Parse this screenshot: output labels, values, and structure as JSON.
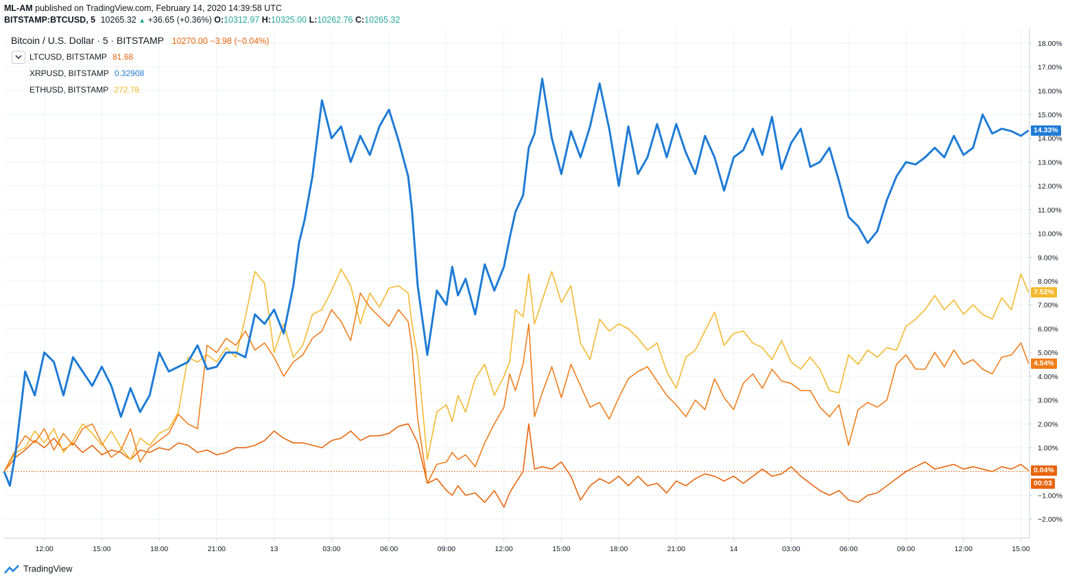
{
  "header": {
    "publisher": "ML-AM",
    "published_text": "published on TradingView.com, February 14, 2020 14:39:58 UTC",
    "symbol": "BITSTAMP:BTCUSD, 5",
    "price": "10265.32",
    "change": "+36.65 (+0.36%)",
    "open_label": "O:",
    "open": "10312.97",
    "high_label": "H:",
    "high": "10325.00",
    "low_label": "L:",
    "low": "10262.76",
    "close_label": "C:",
    "close": "10265.32"
  },
  "legend": {
    "main_title": "Bitcoin / U.S. Dollar · 5 · BITSTAMP",
    "main_values": "10270.00 −3.98 (−0.04%)",
    "overlays": [
      {
        "name": "LTCUSD, BITSTAMP",
        "value": "81.68",
        "color": "#e8640c"
      },
      {
        "name": "XRPUSD, BITSTAMP",
        "value": "0.32908",
        "color": "#1e7bd6"
      },
      {
        "name": "ETHUSD, BITSTAMP",
        "value": "272.78",
        "color": "#f5b82e"
      }
    ]
  },
  "price_tags": [
    {
      "text": "14.33%",
      "color": "#1e7bd6",
      "value": 14.33
    },
    {
      "text": "7.52%",
      "color": "#f5b82e",
      "value": 7.52
    },
    {
      "text": "4.54%",
      "color": "#f07d1a",
      "value": 4.54
    },
    {
      "text": "0.04%",
      "color": "#e8640c",
      "value": 0.04
    },
    {
      "text": "00:03",
      "color": "#e8640c",
      "value": -0.5
    }
  ],
  "brand": "TradingView",
  "colors": {
    "xrp": "#1e7bd6",
    "eth": "#f5b82e",
    "ltc": "#f07d1a",
    "btc": "#e8640c",
    "grid": "#eef0f3"
  },
  "chart_data": {
    "type": "line",
    "ylim": [
      -2.8,
      18.6
    ],
    "y_unit": "%",
    "y_ticks": [
      "18.00%",
      "17.00%",
      "16.00%",
      "15.00%",
      "14.00%",
      "13.00%",
      "12.00%",
      "11.00%",
      "10.00%",
      "9.00%",
      "8.00%",
      "7.00%",
      "6.00%",
      "5.00%",
      "4.00%",
      "3.00%",
      "2.00%",
      "1.00%",
      "−1.00%",
      "−2.00%"
    ],
    "y_tick_values": [
      18,
      17,
      16,
      15,
      14,
      13,
      12,
      11,
      10,
      9,
      8,
      7,
      6,
      5,
      4,
      3,
      2,
      1,
      -1,
      -2
    ],
    "x_ticks": [
      "12:00",
      "15:00",
      "18:00",
      "21:00",
      "13",
      "03:00",
      "06:00",
      "09:00",
      "12:00",
      "15:00",
      "18:00",
      "21:00",
      "14",
      "03:00",
      "06:00",
      "09:00",
      "12:00",
      "15:00"
    ],
    "x_tick_hours": [
      3,
      6,
      9,
      12,
      15,
      18,
      21,
      24,
      27,
      30,
      33,
      36,
      39,
      42,
      45,
      48,
      51,
      54
    ],
    "x_range_hours": [
      0.9,
      54.45
    ],
    "series": [
      {
        "name": "XRPUSD",
        "color": "#1e7bd6",
        "x": [
          0.9,
          1.2,
          1.5,
          2,
          2.5,
          3,
          3.5,
          4,
          4.5,
          5,
          5.5,
          6,
          6.5,
          7,
          7.5,
          8,
          8.5,
          9,
          9.5,
          10,
          10.5,
          11,
          11.5,
          12,
          12.5,
          13,
          13.5,
          14,
          14.5,
          15,
          15.5,
          16,
          16.3,
          16.6,
          17,
          17.5,
          18,
          18.5,
          19,
          19.5,
          20,
          20.5,
          21,
          21.5,
          22,
          22.2,
          22.5,
          23,
          23.5,
          24,
          24.3,
          24.6,
          25,
          25.5,
          26,
          26.5,
          27,
          27.3,
          27.6,
          28,
          28.3,
          28.6,
          29,
          29.5,
          30,
          30.5,
          31,
          31.5,
          32,
          32.5,
          33,
          33.5,
          34,
          34.5,
          35,
          35.5,
          36,
          36.5,
          37,
          37.5,
          38,
          38.5,
          39,
          39.5,
          40,
          40.5,
          41,
          41.5,
          42,
          42.5,
          43,
          43.5,
          44,
          44.5,
          45,
          45.5,
          46,
          46.5,
          47,
          47.5,
          48,
          48.5,
          49,
          49.5,
          50,
          50.5,
          51,
          51.5,
          52,
          52.5,
          53,
          53.5,
          54,
          54.4
        ],
        "y": [
          0,
          -0.6,
          0.8,
          4.2,
          3.2,
          5,
          4.6,
          3.2,
          4.8,
          4.2,
          3.6,
          4.4,
          3.6,
          2.3,
          3.5,
          2.5,
          3.2,
          5,
          4.2,
          4.4,
          4.6,
          5.3,
          4.3,
          4.4,
          5,
          5,
          4.8,
          6.6,
          6.2,
          6.8,
          5.8,
          7.8,
          9.6,
          10.6,
          12.4,
          15.6,
          14,
          14.5,
          13,
          14.1,
          13.3,
          14.5,
          15.2,
          13.9,
          12.4,
          11,
          7.8,
          4.9,
          7.6,
          7,
          8.6,
          7.4,
          8.1,
          6.6,
          8.7,
          7.6,
          8.6,
          9.8,
          10.9,
          11.6,
          13.6,
          14.2,
          16.5,
          14,
          12.5,
          14.3,
          13.2,
          14.5,
          16.3,
          14.4,
          12,
          14.5,
          12.5,
          13.2,
          14.6,
          13.2,
          14.6,
          13.4,
          12.5,
          14.1,
          13.2,
          11.8,
          13.2,
          13.5,
          14.4,
          13.3,
          14.9,
          12.7,
          13.8,
          14.4,
          12.8,
          13,
          13.6,
          12.2,
          10.7,
          10.3,
          9.6,
          10.1,
          11.4,
          12.4,
          13,
          12.9,
          13.2,
          13.6,
          13.2,
          14.1,
          13.3,
          13.6,
          15,
          14.2,
          14.4,
          14.3,
          14.1,
          14.33
        ]
      },
      {
        "name": "ETHUSD",
        "color": "#f5b82e",
        "x": [
          0.9,
          1.5,
          2,
          2.5,
          3,
          3.5,
          4,
          4.5,
          5,
          5.5,
          6,
          6.5,
          7,
          7.5,
          8,
          8.5,
          9,
          9.5,
          10,
          10.5,
          11,
          11.5,
          12,
          12.5,
          13,
          13.5,
          14,
          14.5,
          15,
          15.5,
          16,
          16.5,
          17,
          17.5,
          18,
          18.5,
          19,
          19.5,
          20,
          20.5,
          21,
          21.5,
          22,
          22.2,
          22.5,
          23,
          23.5,
          24,
          24.3,
          24.6,
          25,
          25.5,
          26,
          26.5,
          27,
          27.3,
          27.6,
          28,
          28.3,
          28.6,
          29,
          29.5,
          30,
          30.5,
          31,
          31.5,
          32,
          32.5,
          33,
          33.5,
          34,
          34.5,
          35,
          35.5,
          36,
          36.5,
          37,
          37.5,
          38,
          38.5,
          39,
          39.5,
          40,
          40.5,
          41,
          41.5,
          42,
          42.5,
          43,
          43.5,
          44,
          44.5,
          45,
          45.5,
          46,
          46.5,
          47,
          47.5,
          48,
          48.5,
          49,
          49.5,
          50,
          50.5,
          51,
          51.5,
          52,
          52.5,
          53,
          53.5,
          54,
          54.4
        ],
        "y": [
          0,
          0.8,
          1,
          1.7,
          1.2,
          1.8,
          0.8,
          1.3,
          2,
          1.6,
          1.1,
          1.7,
          1,
          0.5,
          1.4,
          1.1,
          1.6,
          1.8,
          2.5,
          4.8,
          4.6,
          4.9,
          4.6,
          5.2,
          4.8,
          6.5,
          8.4,
          7.9,
          5,
          6.2,
          4.8,
          5.3,
          6.6,
          6.8,
          7.6,
          8.5,
          7.8,
          6.2,
          7.5,
          6.9,
          7.7,
          7.8,
          7.5,
          6.2,
          4.8,
          0.5,
          2.5,
          2.8,
          2.1,
          3.2,
          2.5,
          3.9,
          4.5,
          3.2,
          4,
          4.6,
          6.8,
          6.5,
          8.3,
          6.2,
          7.2,
          8.4,
          7.1,
          7.8,
          5.4,
          4.7,
          6.4,
          5.9,
          6.2,
          6,
          5.6,
          5.1,
          5.4,
          4.2,
          3.5,
          4.8,
          5.1,
          5.9,
          6.7,
          5.3,
          5.8,
          5.9,
          5.4,
          5.2,
          4.7,
          5.5,
          4.6,
          4.3,
          4.8,
          4.3,
          3.4,
          3.3,
          4.9,
          4.5,
          5.1,
          4.8,
          5.2,
          5.1,
          6.1,
          6.4,
          6.8,
          7.4,
          6.8,
          7.2,
          6.6,
          7,
          6.6,
          6.4,
          7.3,
          6.8,
          8.3,
          7.52
        ]
      },
      {
        "name": "LTCUSD",
        "color": "#f07d1a",
        "x": [
          0.9,
          1.5,
          2,
          2.5,
          3,
          3.5,
          4,
          4.5,
          5,
          5.5,
          6,
          6.5,
          7,
          7.5,
          8,
          8.5,
          9,
          9.5,
          10,
          10.5,
          11,
          11.5,
          12,
          12.5,
          13,
          13.5,
          14,
          14.5,
          15,
          15.5,
          16,
          16.5,
          17,
          17.5,
          18,
          18.5,
          19,
          19.5,
          20,
          20.5,
          21,
          21.5,
          22,
          22.2,
          22.5,
          23,
          23.5,
          24,
          24.3,
          24.6,
          25,
          25.5,
          26,
          26.5,
          27,
          27.3,
          27.6,
          28,
          28.3,
          28.6,
          29,
          29.5,
          30,
          30.5,
          31,
          31.5,
          32,
          32.5,
          33,
          33.5,
          34,
          34.5,
          35,
          35.5,
          36,
          36.5,
          37,
          37.5,
          38,
          38.5,
          39,
          39.5,
          40,
          40.5,
          41,
          41.5,
          42,
          42.5,
          43,
          43.5,
          44,
          44.5,
          45,
          45.5,
          46,
          46.5,
          47,
          47.5,
          48,
          48.5,
          49,
          49.5,
          50,
          50.5,
          51,
          51.5,
          52,
          52.5,
          53,
          53.5,
          54,
          54.4
        ],
        "y": [
          0,
          0.9,
          1.5,
          1.2,
          1.8,
          0.9,
          1.6,
          1.1,
          1.8,
          2,
          1.2,
          0.6,
          0.9,
          1.8,
          0.4,
          1,
          1.3,
          1.6,
          2.4,
          2,
          1.8,
          5.3,
          5,
          5.6,
          5.3,
          5.9,
          5.1,
          5.4,
          4.8,
          4,
          4.6,
          4.9,
          5.6,
          5.9,
          6.8,
          6.3,
          5.5,
          7.5,
          6.9,
          6.5,
          6.1,
          6.8,
          6.3,
          5.2,
          2.2,
          -0.5,
          0.3,
          0.4,
          0.8,
          0.5,
          0.7,
          0.2,
          1.2,
          2,
          2.7,
          4.1,
          3.4,
          4.5,
          6.2,
          2.3,
          3.3,
          4.4,
          3.1,
          4.5,
          3.6,
          2.7,
          2.9,
          2.2,
          3.1,
          3.9,
          4.2,
          4.4,
          3.8,
          3.2,
          2.8,
          2.3,
          3,
          2.6,
          3.9,
          3.1,
          2.6,
          3.7,
          4.1,
          3.5,
          4.3,
          3.8,
          3.7,
          3.4,
          3.4,
          2.7,
          2.3,
          2.8,
          1.1,
          2.6,
          2.9,
          2.7,
          3,
          4.5,
          4.9,
          4.3,
          4.3,
          5,
          4.4,
          5.1,
          4.5,
          4.7,
          4.3,
          4.1,
          4.8,
          4.9,
          5.4,
          4.54
        ]
      },
      {
        "name": "BTCUSD",
        "color": "#e8640c",
        "x": [
          0.9,
          1.5,
          2,
          2.5,
          3,
          3.5,
          4,
          4.5,
          5,
          5.5,
          6,
          6.5,
          7,
          7.5,
          8,
          8.5,
          9,
          9.5,
          10,
          10.5,
          11,
          11.5,
          12,
          12.5,
          13,
          13.5,
          14,
          14.5,
          15,
          15.5,
          16,
          16.5,
          17,
          17.5,
          18,
          18.5,
          19,
          19.5,
          20,
          20.5,
          21,
          21.5,
          22,
          22.2,
          22.5,
          23,
          23.5,
          24,
          24.3,
          24.6,
          25,
          25.5,
          26,
          26.5,
          27,
          27.3,
          27.6,
          28,
          28.3,
          28.6,
          29,
          29.5,
          30,
          30.5,
          31,
          31.5,
          32,
          32.5,
          33,
          33.5,
          34,
          34.5,
          35,
          35.5,
          36,
          36.5,
          37,
          37.5,
          38,
          38.5,
          39,
          39.5,
          40,
          40.5,
          41,
          41.5,
          42,
          42.5,
          43,
          43.5,
          44,
          44.5,
          45,
          45.5,
          46,
          46.5,
          47,
          47.5,
          48,
          48.5,
          49,
          49.5,
          50,
          50.5,
          51,
          51.5,
          52,
          52.5,
          53,
          53.5,
          54,
          54.4
        ],
        "y": [
          0,
          0.6,
          0.9,
          1.3,
          1,
          1.4,
          0.9,
          1.2,
          0.8,
          1.1,
          0.7,
          0.9,
          0.8,
          0.5,
          0.9,
          0.8,
          1,
          0.9,
          1.2,
          1.1,
          0.8,
          0.9,
          0.7,
          0.8,
          1,
          1,
          1.1,
          1.3,
          1.7,
          1.4,
          1.2,
          1.2,
          1.1,
          1,
          1.3,
          1.4,
          1.7,
          1.3,
          1.5,
          1.5,
          1.6,
          1.9,
          2,
          1.7,
          1.2,
          -0.5,
          -0.3,
          -0.8,
          -1,
          -0.6,
          -1,
          -0.9,
          -1.3,
          -0.8,
          -1.5,
          -0.9,
          -0.5,
          0,
          2,
          0.1,
          0.2,
          0.1,
          0.4,
          -0.2,
          -1.2,
          -0.6,
          -0.3,
          -0.5,
          -0.2,
          -0.6,
          -0.2,
          -0.6,
          -0.5,
          -0.9,
          -0.4,
          -0.6,
          -0.3,
          -0.1,
          -0.2,
          -0.4,
          -0.2,
          -0.5,
          -0.2,
          0.1,
          -0.2,
          -0.1,
          0.2,
          -0.2,
          -0.5,
          -0.8,
          -1,
          -0.8,
          -1.2,
          -1.3,
          -1,
          -0.9,
          -0.6,
          -0.3,
          0,
          0.2,
          0.4,
          0.1,
          0.2,
          0.3,
          0.1,
          0.2,
          0.1,
          0,
          0.2,
          0.1,
          0.3,
          0.04
        ]
      }
    ]
  }
}
